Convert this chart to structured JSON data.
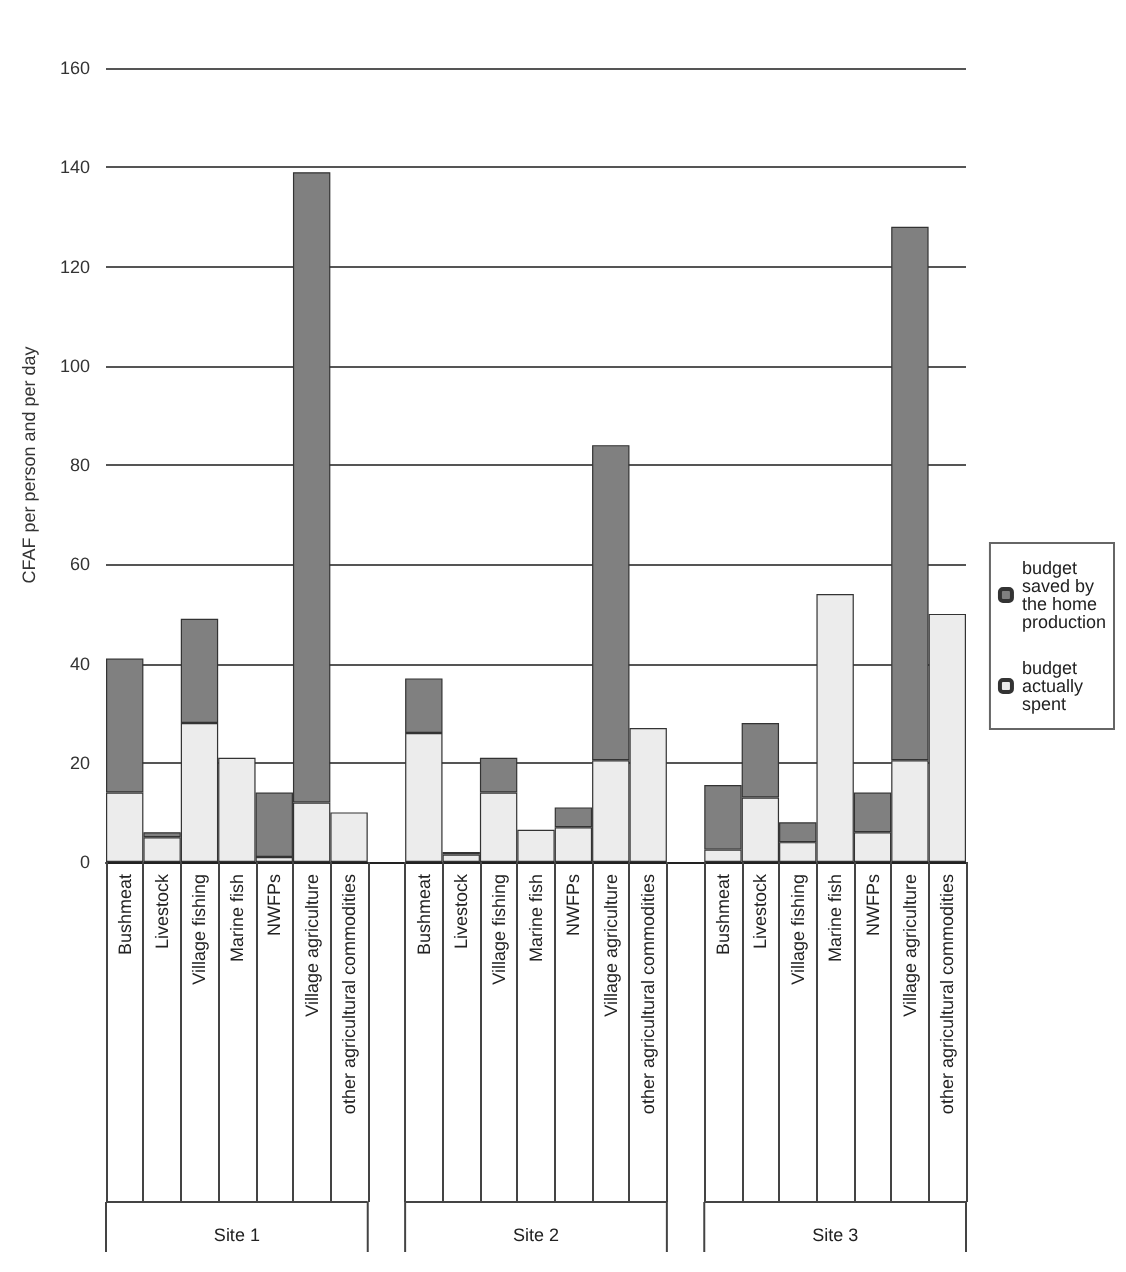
{
  "chart_data": {
    "type": "bar",
    "stacked": true,
    "ylabel": "CFAF per person and per day",
    "categories": [
      "Bushmeat",
      "Livestock",
      "Village fishing",
      "Marine fish",
      "NWFPs",
      "Village agriculture",
      "other agricultural commodities",
      null,
      "Bushmeat",
      "Livestock",
      "Village fishing",
      "Marine fish",
      "NWFPs",
      "Village agriculture",
      "other agricultural commodities",
      null,
      "Bushmeat",
      "Livestock",
      "Village fishing",
      "Marine fish",
      "NWFPs",
      "Village agriculture",
      "other agricultural commodities"
    ],
    "series": [
      {
        "name": "budget actually spent",
        "color": "#ececec",
        "values": [
          14,
          5,
          28,
          21,
          1,
          12,
          10,
          null,
          26,
          1.5,
          14,
          6.5,
          7,
          20.5,
          27,
          null,
          2.5,
          13,
          4,
          54,
          6,
          20.5,
          50
        ]
      },
      {
        "name": "budget saved by the home production",
        "color": "#808080",
        "values": [
          27,
          1,
          21,
          0,
          13,
          127,
          0,
          null,
          11,
          0.5,
          7,
          0,
          4,
          63.5,
          0,
          null,
          13,
          15,
          4,
          0,
          8,
          107.5,
          0
        ]
      }
    ],
    "ylim": [
      0,
      160
    ],
    "yticks": [
      0,
      20,
      40,
      60,
      80,
      100,
      120,
      140,
      160
    ],
    "grid": "y",
    "legend": "right",
    "annotations": [
      "Site 1",
      "Site 2",
      "Site 3"
    ]
  }
}
